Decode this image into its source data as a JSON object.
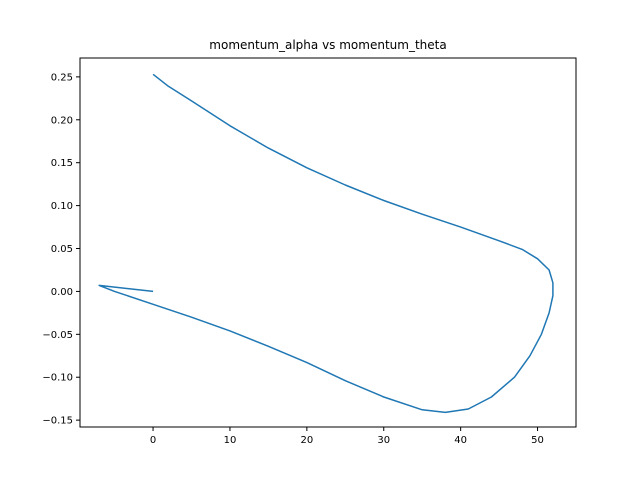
{
  "chart_data": {
    "type": "line",
    "title": "momentum_alpha vs momentum_theta",
    "xlabel": "",
    "ylabel": "",
    "xlim": [
      -9.5,
      55
    ],
    "ylim": [
      -0.158,
      0.272
    ],
    "xticks": [
      0,
      10,
      20,
      30,
      40,
      50
    ],
    "xtick_labels": [
      "0",
      "10",
      "20",
      "30",
      "40",
      "50"
    ],
    "yticks": [
      -0.15,
      -0.1,
      -0.05,
      0.0,
      0.05,
      0.1,
      0.15,
      0.2,
      0.25
    ],
    "ytick_labels": [
      "−0.15",
      "−0.10",
      "−0.05",
      "0.00",
      "0.05",
      "0.10",
      "0.15",
      "0.20",
      "0.25"
    ],
    "grid": false,
    "series_color": "#1f77b4",
    "series": [
      {
        "x": [
          0,
          2,
          5,
          10,
          15,
          20,
          25,
          30,
          35,
          40,
          45,
          48,
          50,
          51.5,
          52,
          52,
          51.5,
          50.5,
          49,
          47,
          44,
          41,
          38,
          35,
          30,
          25,
          20,
          15,
          10,
          5,
          0,
          -5,
          -7,
          -6,
          0
        ],
        "y": [
          0.253,
          0.239,
          0.222,
          0.193,
          0.167,
          0.144,
          0.124,
          0.106,
          0.09,
          0.075,
          0.059,
          0.049,
          0.038,
          0.025,
          0.01,
          -0.005,
          -0.025,
          -0.05,
          -0.075,
          -0.1,
          -0.123,
          -0.137,
          -0.141,
          -0.138,
          -0.123,
          -0.104,
          -0.083,
          -0.064,
          -0.046,
          -0.03,
          -0.015,
          0.0,
          0.007,
          0.006,
          0.0
        ]
      }
    ]
  }
}
